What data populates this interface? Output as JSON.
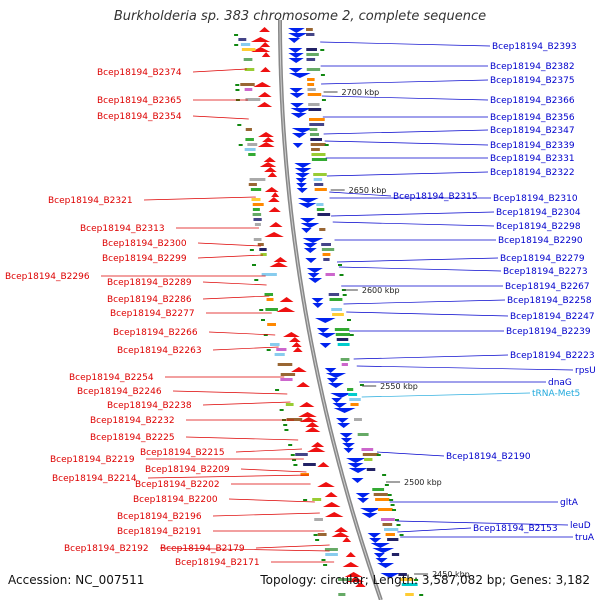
{
  "title": "Burkholderia sp. 383 chromosome 2, complete sequence",
  "accession_text": "Accession: NC_007511",
  "summary_text": "Topology: circular; Length: 3,587,082 bp; Genes: 3,182",
  "colors": {
    "left_label": "#dd0000",
    "right_label": "#0000cc",
    "trna_label": "#22aadd",
    "backbone": "#888888",
    "forward_gene": "#ee1111",
    "reverse_gene": "#0022ee",
    "tick": "#118811"
  },
  "scale_ticks": [
    {
      "label": "2700 kbp"
    },
    {
      "label": "2650 kbp"
    },
    {
      "label": "2600 kbp"
    },
    {
      "label": "2550 kbp"
    },
    {
      "label": "2500 kbp"
    },
    {
      "label": "2450 kbp"
    }
  ],
  "left_labels": [
    "Bcep18194_B2374",
    "Bcep18194_B2365",
    "Bcep18194_B2354",
    "Bcep18194_B2321",
    "Bcep18194_B2313",
    "Bcep18194_B2300",
    "Bcep18194_B2299",
    "Bcep18194_B2296",
    "Bcep18194_B2289",
    "Bcep18194_B2286",
    "Bcep18194_B2277",
    "Bcep18194_B2266",
    "Bcep18194_B2263",
    "Bcep18194_B2254",
    "Bcep18194_B2246",
    "Bcep18194_B2238",
    "Bcep18194_B2232",
    "Bcep18194_B2225",
    "Bcep18194_B2215",
    "Bcep18194_B2219",
    "Bcep18194_B2209",
    "Bcep18194_B2214",
    "Bcep18194_B2202",
    "Bcep18194_B2200",
    "Bcep18194_B2196",
    "Bcep18194_B2191",
    "Bcep18194_B2192",
    "Bcep18194_B2179",
    "Bcep18194_B2171"
  ],
  "right_labels": [
    "Bcep18194_B2393",
    "Bcep18194_B2382",
    "Bcep18194_B2375",
    "Bcep18194_B2366",
    "Bcep18194_B2356",
    "Bcep18194_B2347",
    "Bcep18194_B2339",
    "Bcep18194_B2331",
    "Bcep18194_B2322",
    "Bcep18194_B2315",
    "Bcep18194_B2310",
    "Bcep18194_B2304",
    "Bcep18194_B2298",
    "Bcep18194_B2290",
    "Bcep18194_B2279",
    "Bcep18194_B2273",
    "Bcep18194_B2267",
    "Bcep18194_B2258",
    "Bcep18194_B2247",
    "Bcep18194_B2239",
    "Bcep18194_B2223",
    "rpsU",
    "dnaG",
    "tRNA-Met5",
    "Bcep18194_B2190",
    "gltA",
    "Bcep18194_B2153",
    "leuD",
    "truA"
  ]
}
